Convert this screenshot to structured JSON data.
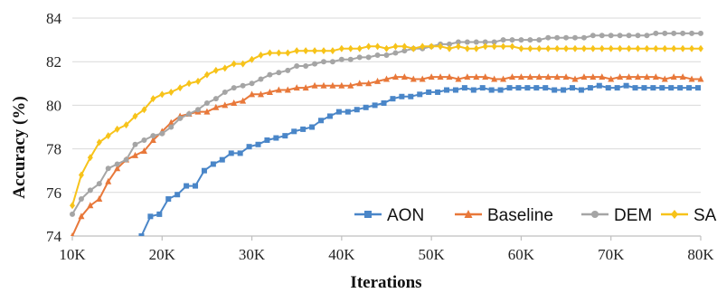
{
  "chart_data": {
    "type": "line",
    "xlabel": "Iterations",
    "ylabel": "Accuracy (%)",
    "xlim": [
      10000,
      80000
    ],
    "ylim": [
      74,
      84
    ],
    "xticks": [
      10000,
      20000,
      30000,
      40000,
      50000,
      60000,
      70000,
      80000
    ],
    "xtick_labels": [
      "10K",
      "20K",
      "30K",
      "40K",
      "50K",
      "60K",
      "70K",
      "80K"
    ],
    "yticks": [
      74,
      76,
      78,
      80,
      82,
      84
    ],
    "ytick_labels": [
      "74",
      "76",
      "78",
      "80",
      "82",
      "84"
    ],
    "grid": "horizontal",
    "legend_position": "bottom-right",
    "series": [
      {
        "name": "AON",
        "color": "#4a86c8",
        "marker": "square",
        "x": [
          17700,
          18700,
          19700,
          20700,
          21700,
          22700,
          23700,
          24700,
          25700,
          26700,
          27700,
          28700,
          29700,
          30700,
          31700,
          32700,
          33700,
          34700,
          35700,
          36700,
          37700,
          38700,
          39700,
          40700,
          41700,
          42700,
          43700,
          44700,
          45700,
          46700,
          47700,
          48700,
          49700,
          50700,
          51700,
          52700,
          53700,
          54700,
          55700,
          56700,
          57700,
          58700,
          59700,
          60700,
          61700,
          62700,
          63700,
          64700,
          65700,
          66700,
          67700,
          68700,
          69700,
          70700,
          71700,
          72700,
          73700,
          74700,
          75700,
          76700,
          77700,
          78700,
          79700
        ],
        "y": [
          74.0,
          74.9,
          75.0,
          75.7,
          75.9,
          76.3,
          76.3,
          77.0,
          77.3,
          77.5,
          77.8,
          77.8,
          78.1,
          78.2,
          78.4,
          78.5,
          78.6,
          78.8,
          78.9,
          79.0,
          79.3,
          79.5,
          79.7,
          79.7,
          79.8,
          79.9,
          80.0,
          80.1,
          80.3,
          80.4,
          80.4,
          80.5,
          80.6,
          80.6,
          80.7,
          80.7,
          80.8,
          80.7,
          80.8,
          80.7,
          80.7,
          80.8,
          80.8,
          80.8,
          80.8,
          80.8,
          80.7,
          80.7,
          80.8,
          80.7,
          80.8,
          80.9,
          80.8,
          80.8,
          80.9,
          80.8,
          80.8,
          80.8,
          80.8,
          80.8,
          80.8,
          80.8,
          80.8
        ]
      },
      {
        "name": "Baseline",
        "color": "#e8783a",
        "marker": "triangle",
        "x": [
          10000,
          11000,
          12000,
          13000,
          14000,
          15000,
          16000,
          17000,
          18000,
          19000,
          20000,
          21000,
          22000,
          23000,
          24000,
          25000,
          26000,
          27000,
          28000,
          29000,
          30000,
          31000,
          32000,
          33000,
          34000,
          35000,
          36000,
          37000,
          38000,
          39000,
          40000,
          41000,
          42000,
          43000,
          44000,
          45000,
          46000,
          47000,
          48000,
          49000,
          50000,
          51000,
          52000,
          53000,
          54000,
          55000,
          56000,
          57000,
          58000,
          59000,
          60000,
          61000,
          62000,
          63000,
          64000,
          65000,
          66000,
          67000,
          68000,
          69000,
          70000,
          71000,
          72000,
          73000,
          74000,
          75000,
          76000,
          77000,
          78000,
          79000,
          80000
        ],
        "y": [
          74.0,
          74.9,
          75.4,
          75.7,
          76.5,
          77.1,
          77.5,
          77.7,
          77.9,
          78.4,
          78.8,
          79.2,
          79.5,
          79.6,
          79.7,
          79.7,
          79.9,
          80.0,
          80.1,
          80.2,
          80.5,
          80.5,
          80.6,
          80.7,
          80.7,
          80.8,
          80.8,
          80.9,
          80.9,
          80.9,
          80.9,
          80.9,
          81.0,
          81.0,
          81.1,
          81.2,
          81.3,
          81.3,
          81.2,
          81.2,
          81.3,
          81.3,
          81.3,
          81.2,
          81.3,
          81.3,
          81.3,
          81.2,
          81.2,
          81.3,
          81.3,
          81.3,
          81.3,
          81.3,
          81.3,
          81.3,
          81.2,
          81.3,
          81.3,
          81.3,
          81.2,
          81.3,
          81.3,
          81.3,
          81.3,
          81.3,
          81.2,
          81.3,
          81.3,
          81.2,
          81.2
        ]
      },
      {
        "name": "DEM",
        "color": "#a5a5a5",
        "marker": "circle",
        "x": [
          10000,
          11000,
          12000,
          13000,
          14000,
          15000,
          16000,
          17000,
          18000,
          19000,
          20000,
          21000,
          22000,
          23000,
          24000,
          25000,
          26000,
          27000,
          28000,
          29000,
          30000,
          31000,
          32000,
          33000,
          34000,
          35000,
          36000,
          37000,
          38000,
          39000,
          40000,
          41000,
          42000,
          43000,
          44000,
          45000,
          46000,
          47000,
          48000,
          49000,
          50000,
          51000,
          52000,
          53000,
          54000,
          55000,
          56000,
          57000,
          58000,
          59000,
          60000,
          61000,
          62000,
          63000,
          64000,
          65000,
          66000,
          67000,
          68000,
          69000,
          70000,
          71000,
          72000,
          73000,
          74000,
          75000,
          76000,
          77000,
          78000,
          79000,
          80000
        ],
        "y": [
          75.0,
          75.7,
          76.1,
          76.4,
          77.1,
          77.3,
          77.5,
          78.2,
          78.4,
          78.6,
          78.7,
          79.0,
          79.4,
          79.6,
          79.8,
          80.1,
          80.3,
          80.6,
          80.8,
          80.9,
          81.0,
          81.2,
          81.4,
          81.5,
          81.6,
          81.8,
          81.8,
          81.9,
          82.0,
          82.0,
          82.1,
          82.1,
          82.2,
          82.2,
          82.3,
          82.3,
          82.4,
          82.5,
          82.6,
          82.6,
          82.7,
          82.8,
          82.8,
          82.9,
          82.9,
          82.9,
          82.9,
          82.9,
          83.0,
          83.0,
          83.0,
          83.0,
          83.0,
          83.1,
          83.1,
          83.1,
          83.1,
          83.1,
          83.2,
          83.2,
          83.2,
          83.2,
          83.2,
          83.2,
          83.2,
          83.3,
          83.3,
          83.3,
          83.3,
          83.3,
          83.3
        ]
      },
      {
        "name": "SAN",
        "color": "#f7c31a",
        "marker": "diamond",
        "x": [
          10000,
          11000,
          12000,
          13000,
          14000,
          15000,
          16000,
          17000,
          18000,
          19000,
          20000,
          21000,
          22000,
          23000,
          24000,
          25000,
          26000,
          27000,
          28000,
          29000,
          30000,
          31000,
          32000,
          33000,
          34000,
          35000,
          36000,
          37000,
          38000,
          39000,
          40000,
          41000,
          42000,
          43000,
          44000,
          45000,
          46000,
          47000,
          48000,
          49000,
          50000,
          51000,
          52000,
          53000,
          54000,
          55000,
          56000,
          57000,
          58000,
          59000,
          60000,
          61000,
          62000,
          63000,
          64000,
          65000,
          66000,
          67000,
          68000,
          69000,
          70000,
          71000,
          72000,
          73000,
          74000,
          75000,
          76000,
          77000,
          78000,
          79000,
          80000
        ],
        "y": [
          75.4,
          76.8,
          77.6,
          78.3,
          78.6,
          78.9,
          79.1,
          79.5,
          79.8,
          80.3,
          80.5,
          80.6,
          80.8,
          81.0,
          81.1,
          81.4,
          81.6,
          81.7,
          81.9,
          81.9,
          82.1,
          82.3,
          82.4,
          82.4,
          82.4,
          82.5,
          82.5,
          82.5,
          82.5,
          82.5,
          82.6,
          82.6,
          82.6,
          82.7,
          82.7,
          82.6,
          82.7,
          82.7,
          82.6,
          82.7,
          82.7,
          82.7,
          82.6,
          82.7,
          82.6,
          82.6,
          82.7,
          82.7,
          82.7,
          82.7,
          82.6,
          82.6,
          82.6,
          82.6,
          82.6,
          82.6,
          82.6,
          82.6,
          82.6,
          82.6,
          82.6,
          82.6,
          82.6,
          82.6,
          82.6,
          82.6,
          82.6,
          82.6,
          82.6,
          82.6,
          82.6
        ]
      }
    ]
  }
}
